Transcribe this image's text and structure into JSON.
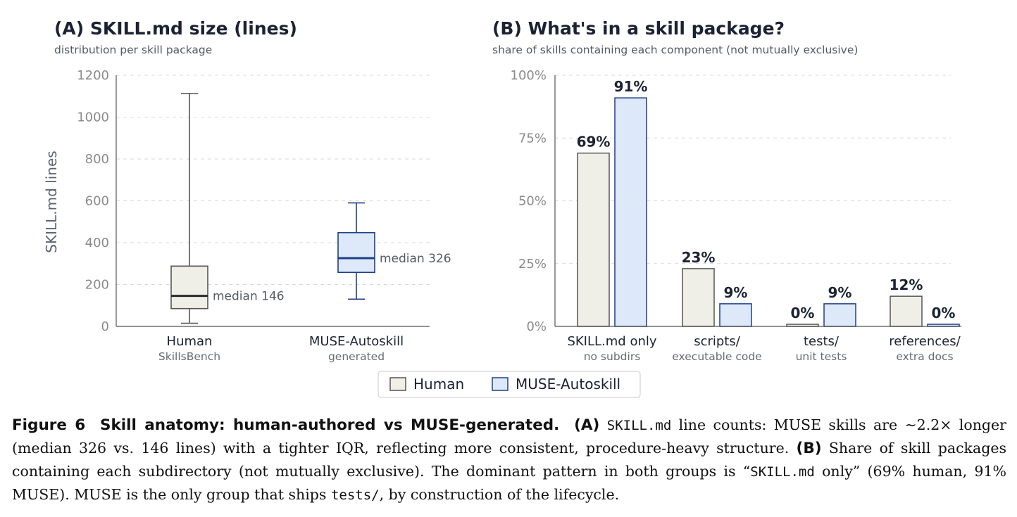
{
  "colors": {
    "human_fill": "#efefe7",
    "human_stroke": "#555555",
    "muse_fill": "#dde8f8",
    "muse_stroke": "#1f3f87",
    "text_dark": "#1b2233"
  },
  "chart_data": [
    {
      "type": "box",
      "title": "(A) SKILL.md size (lines)",
      "subtitle": "distribution per skill package",
      "ylabel": "SKILL.md lines",
      "ylim": [
        0,
        1200
      ],
      "yticks": [
        "0",
        "200",
        "400",
        "600",
        "800",
        "1000",
        "1200"
      ],
      "grid": true,
      "groups": [
        {
          "name": "Human",
          "sublabel": "SkillsBench",
          "whisker_low": 15,
          "q1": 85,
          "median": 146,
          "q3": 288,
          "whisker_high": 1113,
          "median_label": "median 146"
        },
        {
          "name": "MUSE-Autoskill",
          "sublabel": "generated",
          "whisker_low": 130,
          "q1": 258,
          "median": 326,
          "q3": 448,
          "whisker_high": 590,
          "median_label": "median 326"
        }
      ]
    },
    {
      "type": "bar",
      "title": "(B) What's in a skill package?",
      "subtitle": "share of skills containing each component (not mutually exclusive)",
      "ylim": [
        0,
        100
      ],
      "yticks": [
        "0%",
        "25%",
        "50%",
        "75%",
        "100%"
      ],
      "grid": true,
      "categories": [
        "SKILL.md only",
        "scripts/",
        "tests/",
        "references/"
      ],
      "category_sublabels": [
        "no subdirs",
        "executable code",
        "unit tests",
        "extra docs"
      ],
      "series": [
        {
          "name": "Human",
          "values": [
            69,
            23,
            0,
            12
          ],
          "labels": [
            "69%",
            "23%",
            "0%",
            "12%"
          ]
        },
        {
          "name": "MUSE-Autoskill",
          "values": [
            91,
            9,
            9,
            0
          ],
          "labels": [
            "91%",
            "9%",
            "9%",
            "0%"
          ]
        }
      ],
      "legend": {
        "placement": "bottom-center",
        "items": [
          "Human",
          "MUSE-Autoskill"
        ]
      }
    }
  ],
  "caption": {
    "figure_label": "Figure 6",
    "figure_title": "Skill anatomy: human-authored vs MUSE-generated.",
    "part_a_label": "(A)",
    "part_a_code": "SKILL.md",
    "part_a_text": " line counts: MUSE skills are ∼2.2× longer (median 326 vs. 146 lines) with a tighter IQR, reflecting more consistent, procedure-heavy structure.",
    "part_b_label": "(B)",
    "part_b_text1": " Share of skill packages containing each subdirectory (not mutually exclusive). The dominant pattern in both groups is “",
    "part_b_code1": "SKILL.md",
    "part_b_text2": " only” (69% human, 91% MUSE). MUSE is the only group that ships ",
    "part_b_code2": "tests/",
    "part_b_text3": ", by construction of the lifecycle."
  }
}
